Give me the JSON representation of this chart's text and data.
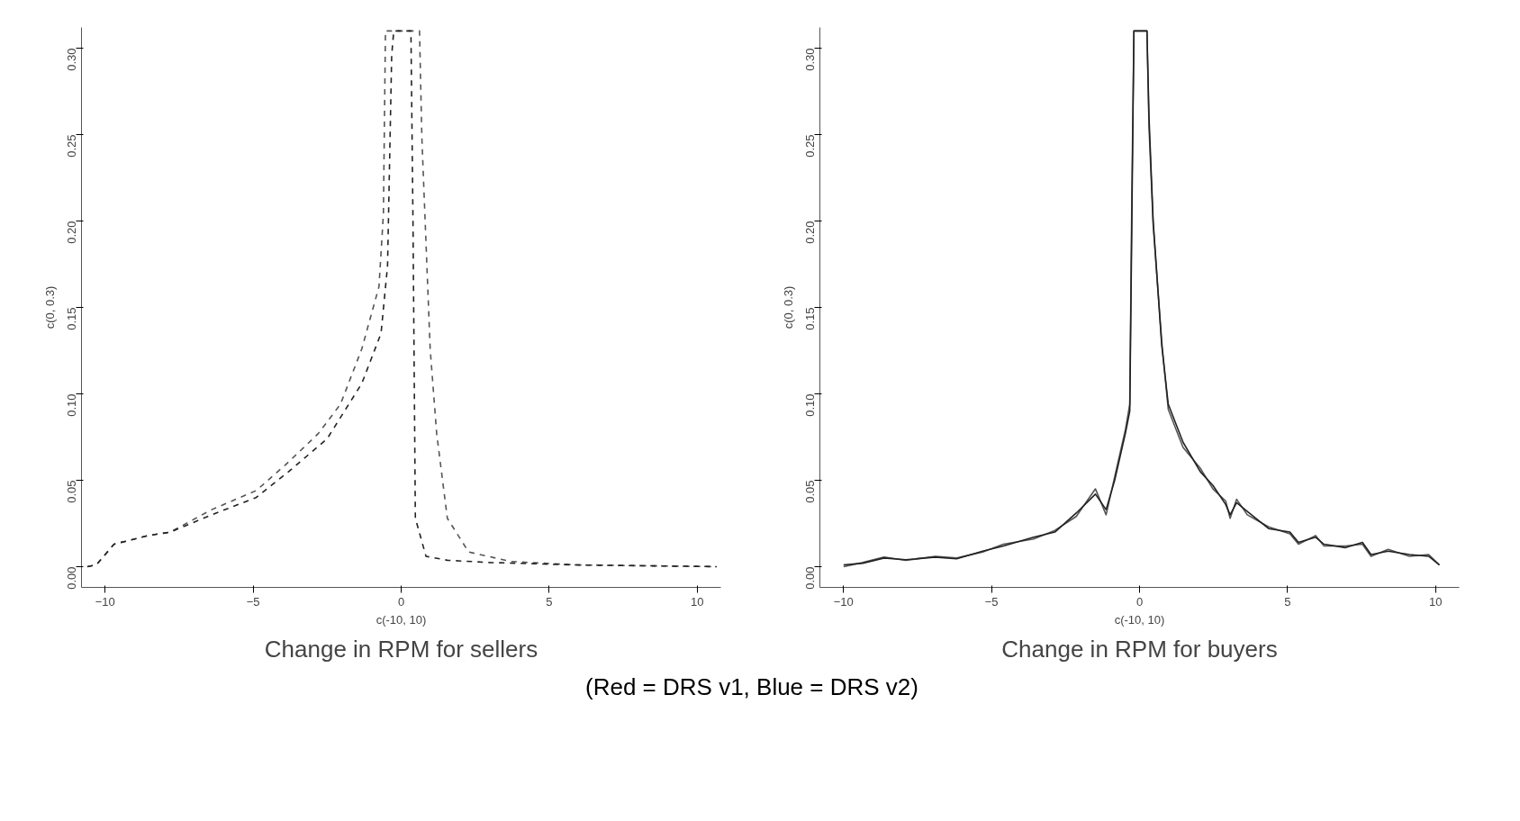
{
  "chart_data": [
    {
      "type": "line",
      "title": "Change in RPM for sellers",
      "xlabel": "c(-10, 10)",
      "ylabel": "c(0, 0.3)",
      "xlim": [
        -10.8,
        10.8
      ],
      "ylim": [
        -0.012,
        0.312
      ],
      "xticks": [
        -10,
        -5,
        0,
        5,
        10
      ],
      "yticks": [
        {
          "value": 0,
          "label": "0.00"
        },
        {
          "value": 0.05,
          "label": "0.05"
        },
        {
          "value": 0.1,
          "label": "0.10"
        },
        {
          "value": 0.15,
          "label": "0.15"
        },
        {
          "value": 0.2,
          "label": "0.20"
        },
        {
          "value": 0.25,
          "label": "0.25"
        },
        {
          "value": 0.3,
          "label": "0.30"
        }
      ],
      "grid": false,
      "line_style": "dashed",
      "series": [
        {
          "color": "#555555",
          "x": [
            -10.6,
            -10.3,
            -9.7,
            -8.55,
            -7.8,
            -6.4,
            -4.9,
            -3.9,
            -2.8,
            -2.05,
            -1.33,
            -0.75,
            -0.6,
            -0.53,
            0.62,
            0.7,
            0.98,
            1.2,
            1.56,
            2.28,
            3.7,
            5.9,
            10.66
          ],
          "values": [
            0,
            0.001,
            0.013,
            0.018,
            0.02,
            0.033,
            0.044,
            0.059,
            0.077,
            0.094,
            0.126,
            0.162,
            0.204,
            0.31,
            0.31,
            0.248,
            0.126,
            0.077,
            0.028,
            0.0085,
            0.003,
            0.001,
            0
          ]
        },
        {
          "color": "#222222",
          "x": [
            -10.6,
            -10.3,
            -9.7,
            -8.55,
            -7.8,
            -6.4,
            -4.9,
            -3.8,
            -2.5,
            -1.33,
            -0.68,
            -0.46,
            -0.32,
            -0.25,
            0.33,
            0.4,
            0.48,
            0.84,
            1.56,
            3.0,
            5.9,
            10.66
          ],
          "values": [
            0,
            0.001,
            0.013,
            0.018,
            0.02,
            0.03,
            0.04,
            0.055,
            0.074,
            0.106,
            0.135,
            0.174,
            0.296,
            0.31,
            0.31,
            0.199,
            0.028,
            0.006,
            0.0037,
            0.0024,
            0.001,
            0
          ]
        }
      ]
    },
    {
      "type": "line",
      "title": "Change in RPM for buyers",
      "xlabel": "c(-10, 10)",
      "ylabel": "c(0, 0.3)",
      "xlim": [
        -10.8,
        10.8
      ],
      "ylim": [
        -0.012,
        0.312
      ],
      "xticks": [
        -10,
        -5,
        0,
        5,
        10
      ],
      "yticks": [
        {
          "value": 0,
          "label": "0.00"
        },
        {
          "value": 0.05,
          "label": "0.05"
        },
        {
          "value": 0.1,
          "label": "0.10"
        },
        {
          "value": 0.15,
          "label": "0.15"
        },
        {
          "value": 0.2,
          "label": "0.20"
        },
        {
          "value": 0.25,
          "label": "0.25"
        },
        {
          "value": 0.3,
          "label": "0.30"
        }
      ],
      "grid": false,
      "line_style": "solid",
      "annotations": [
        "(Red = DRS v1, Blue = DRS v2)"
      ],
      "series": [
        {
          "color": "#555555",
          "x": [
            -10,
            -9.35,
            -8.63,
            -7.9,
            -6.9,
            -6.18,
            -5.3,
            -4.6,
            -3.58,
            -2.86,
            -2.14,
            -1.49,
            -1.13,
            -0.84,
            -0.48,
            -0.33,
            -0.26,
            -0.19,
            0.25,
            0.32,
            0.46,
            0.75,
            0.97,
            1.47,
            2.05,
            2.48,
            2.91,
            3.06,
            3.28,
            3.64,
            4.36,
            5.08,
            5.37,
            5.95,
            6.23,
            6.96,
            7.53,
            7.82,
            8.4,
            9.12,
            9.77,
            10.13
          ],
          "values": [
            0,
            0.0024,
            0.0056,
            0.0036,
            0.006,
            0.005,
            0.0085,
            0.013,
            0.016,
            0.021,
            0.029,
            0.045,
            0.03,
            0.052,
            0.079,
            0.094,
            0.215,
            0.31,
            0.31,
            0.254,
            0.198,
            0.13,
            0.091,
            0.069,
            0.057,
            0.045,
            0.038,
            0.028,
            0.039,
            0.03,
            0.023,
            0.019,
            0.013,
            0.018,
            0.012,
            0.012,
            0.013,
            0.006,
            0.01,
            0.006,
            0.007,
            0.001
          ]
        },
        {
          "color": "#222222",
          "x": [
            -10,
            -9.35,
            -8.63,
            -7.9,
            -6.9,
            -6.18,
            -5.3,
            -4.6,
            -3.58,
            -2.86,
            -2.14,
            -1.49,
            -1.13,
            -0.84,
            -0.48,
            -0.33,
            -0.26,
            -0.19,
            0.25,
            0.32,
            0.46,
            0.75,
            0.97,
            1.47,
            2.05,
            2.48,
            2.91,
            3.06,
            3.28,
            3.64,
            4.36,
            5.08,
            5.37,
            5.95,
            6.23,
            6.96,
            7.53,
            7.82,
            8.4,
            9.12,
            9.77,
            10.13
          ],
          "values": [
            0.001,
            0.002,
            0.005,
            0.004,
            0.0055,
            0.0045,
            0.009,
            0.012,
            0.017,
            0.02,
            0.031,
            0.042,
            0.033,
            0.05,
            0.077,
            0.09,
            0.2,
            0.31,
            0.31,
            0.26,
            0.2,
            0.128,
            0.094,
            0.072,
            0.055,
            0.047,
            0.036,
            0.03,
            0.037,
            0.032,
            0.022,
            0.02,
            0.014,
            0.017,
            0.013,
            0.011,
            0.014,
            0.007,
            0.009,
            0.007,
            0.006,
            0.001
          ]
        }
      ]
    }
  ]
}
